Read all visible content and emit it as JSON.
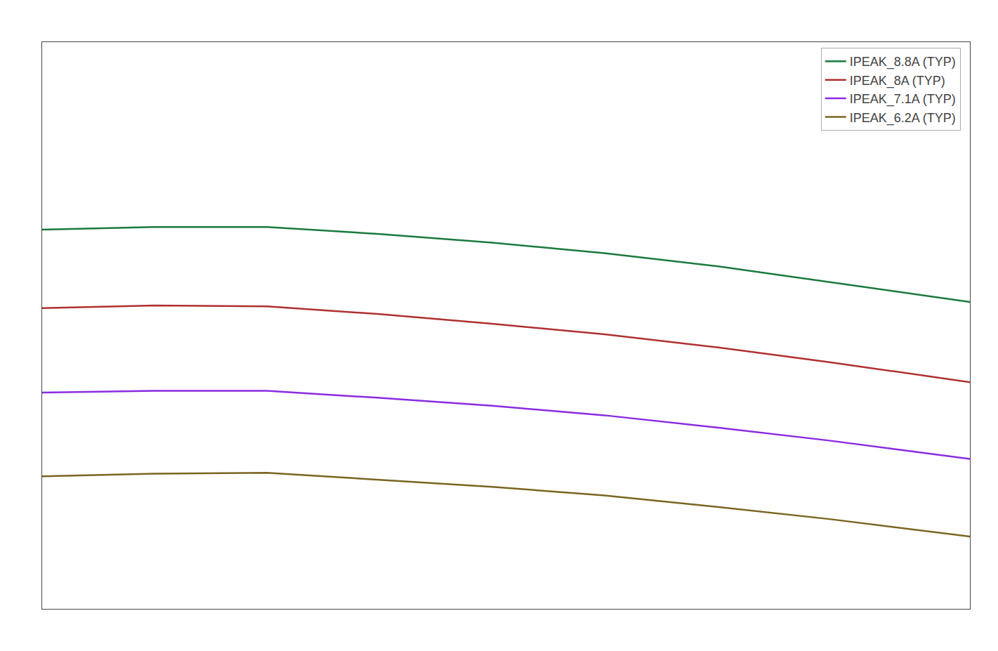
{
  "chart_data": {
    "type": "line",
    "series": [
      {
        "name": "IPEAK_8.8A (TYP)",
        "color": "#1a7a3c",
        "x": [
          -40,
          -20,
          0,
          20,
          40,
          60,
          80,
          100,
          125
        ],
        "values": [
          9.35,
          9.38,
          9.38,
          9.3,
          9.2,
          9.08,
          8.93,
          8.75,
          8.52
        ]
      },
      {
        "name": "IPEAK_8A (TYP)",
        "color": "#b03030",
        "x": [
          -40,
          -20,
          0,
          20,
          40,
          60,
          80,
          100,
          125
        ],
        "values": [
          8.45,
          8.48,
          8.47,
          8.38,
          8.27,
          8.15,
          8.0,
          7.83,
          7.6
        ]
      },
      {
        "name": "IPEAK_7.1A (TYP)",
        "color": "#8b2be2",
        "x": [
          -40,
          -20,
          0,
          20,
          40,
          60,
          80,
          100,
          125
        ],
        "values": [
          7.48,
          7.5,
          7.5,
          7.42,
          7.33,
          7.22,
          7.08,
          6.93,
          6.72
        ]
      },
      {
        "name": "IPEAK_6.2A (TYP)",
        "color": "#7a6520",
        "x": [
          -40,
          -20,
          0,
          20,
          40,
          60,
          80,
          100,
          125
        ],
        "values": [
          6.52,
          6.55,
          6.56,
          6.48,
          6.4,
          6.3,
          6.17,
          6.03,
          5.83
        ]
      }
    ],
    "xlim": [
      -40,
      125
    ],
    "ylim": [
      5.0,
      11.5
    ],
    "grid": false,
    "legend": "upper right",
    "tick_labels": false
  }
}
